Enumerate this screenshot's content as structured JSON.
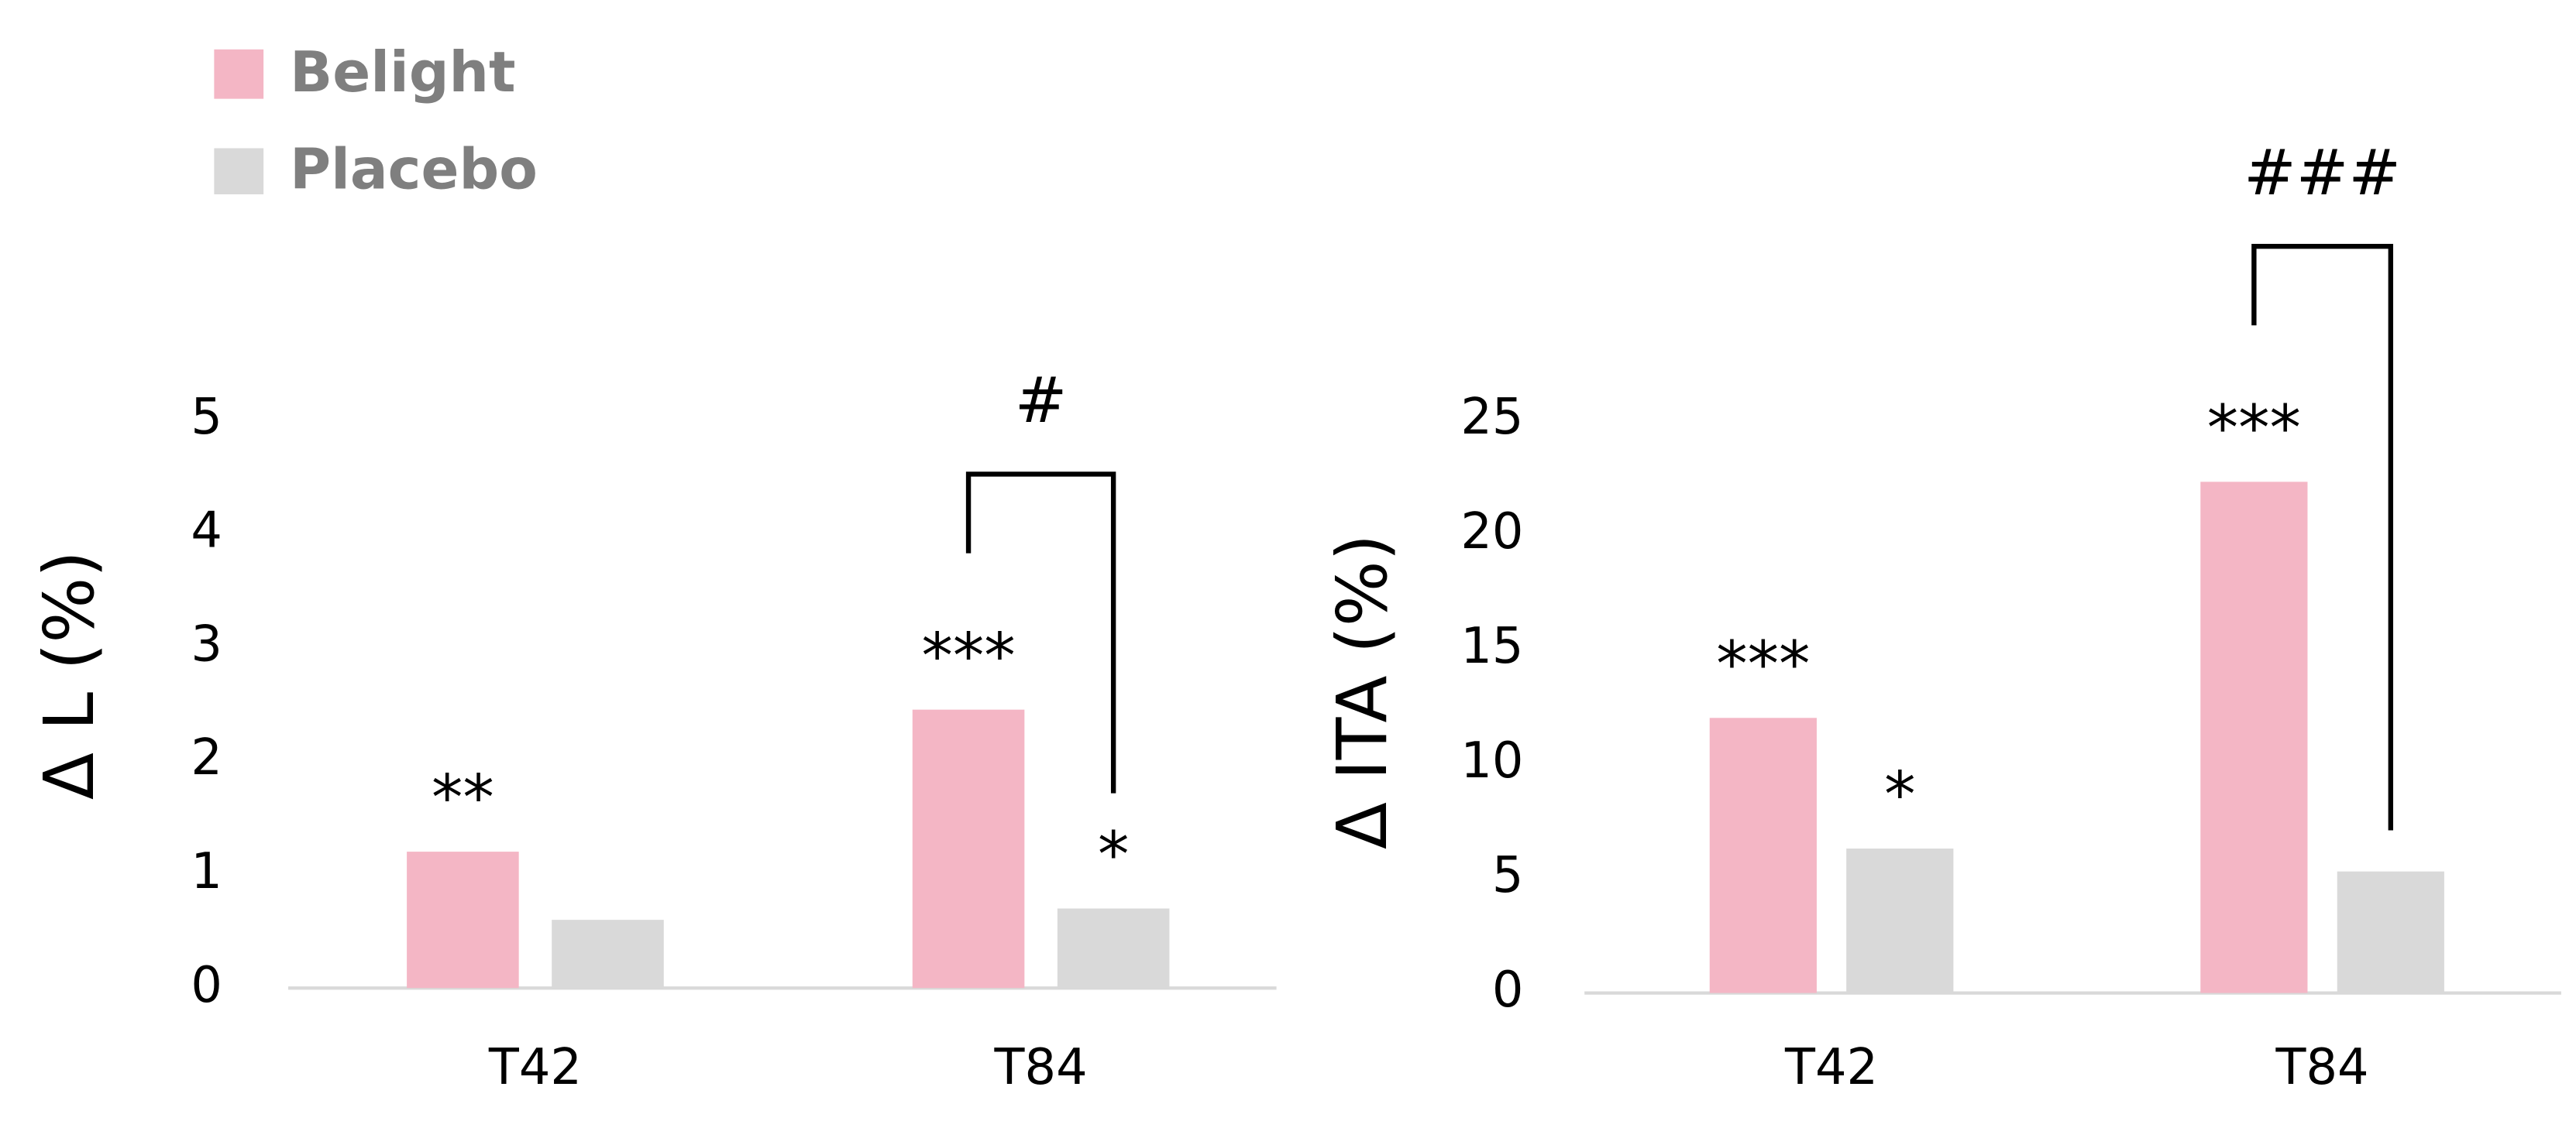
{
  "legend": {
    "items": [
      {
        "name": "Belight",
        "color": "#f4b6c5"
      },
      {
        "name": "Placebo",
        "color": "#d9d9d9"
      }
    ]
  },
  "chart_data": [
    {
      "type": "bar",
      "y_label": "Δ L (%)",
      "categories": [
        "T42",
        "T84"
      ],
      "series": [
        {
          "values": [
            1.2,
            2.45
          ],
          "value_annotations": [
            "**",
            "***"
          ]
        },
        {
          "values": [
            0.6,
            0.7
          ],
          "value_annotations": [
            null,
            "*"
          ]
        }
      ],
      "comparisons": [
        null,
        "#"
      ],
      "ylim": [
        0,
        5
      ],
      "yticks": [
        0,
        1,
        2,
        3,
        4,
        5
      ]
    },
    {
      "type": "bar",
      "y_label": "Δ ITA (%)",
      "categories": [
        "T42",
        "T84"
      ],
      "series": [
        {
          "values": [
            12,
            22.3
          ],
          "value_annotations": [
            "***",
            "***"
          ]
        },
        {
          "values": [
            6.3,
            5.3
          ],
          "value_annotations": [
            "*",
            null
          ]
        }
      ],
      "comparisons": [
        null,
        "###"
      ],
      "ylim": [
        0,
        25
      ],
      "yticks": [
        0,
        5,
        10,
        15,
        20,
        25
      ]
    }
  ]
}
